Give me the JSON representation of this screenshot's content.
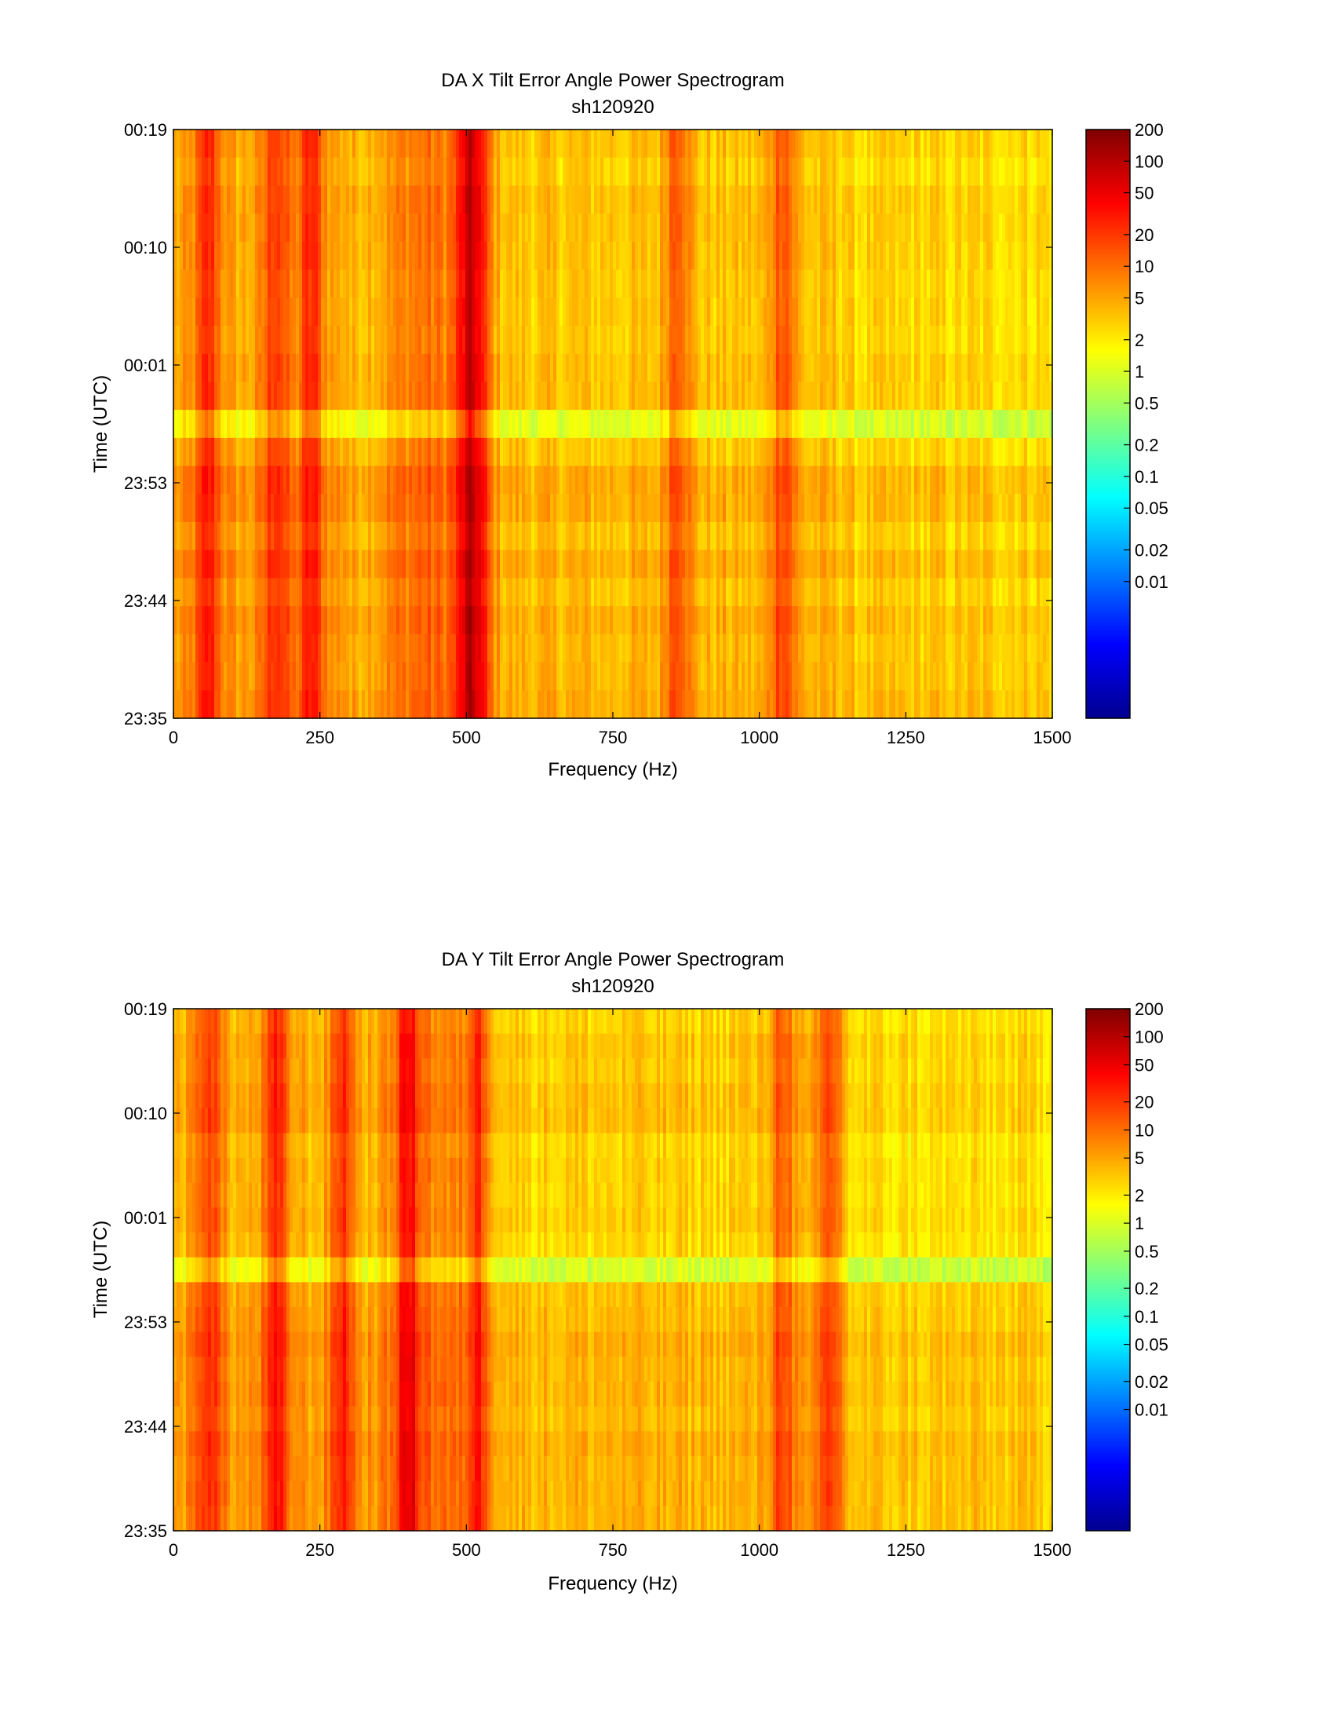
{
  "chart_data": [
    {
      "type": "heatmap",
      "title": "DA X Tilt Error Angle Power Spectrogram",
      "subtitle": "sh120920",
      "xlabel": "Frequency (Hz)",
      "ylabel": "Time (UTC)",
      "xlim": [
        0,
        1500
      ],
      "x_ticks": [
        "0",
        "250",
        "500",
        "750",
        "1000",
        "1250",
        "1500"
      ],
      "y_ticks_bottom_to_top": [
        "23:35",
        "23:44",
        "23:53",
        "00:01",
        "00:10",
        "00:19"
      ],
      "colorbar": {
        "scale": "log",
        "colormap": "jet",
        "range": [
          0.0005,
          200
        ],
        "ticks": [
          "200",
          "100",
          "50",
          "20",
          "10",
          "5",
          "2",
          "1",
          "0.5",
          "0.2",
          "0.1",
          "0.05",
          "0.02",
          "0.01"
        ]
      },
      "features": {
        "peak_bands_hz": [
          60,
          175,
          235,
          500,
          520,
          860,
          1040
        ],
        "quiet_row_near": "23:58",
        "typical_level": 3
      }
    },
    {
      "type": "heatmap",
      "title": "DA Y Tilt Error Angle Power Spectrogram",
      "subtitle": "sh120920",
      "xlabel": "Frequency (Hz)",
      "ylabel": "Time (UTC)",
      "xlim": [
        0,
        1500
      ],
      "x_ticks": [
        "0",
        "250",
        "500",
        "750",
        "1000",
        "1250",
        "1500"
      ],
      "y_ticks_bottom_to_top": [
        "23:35",
        "23:44",
        "23:53",
        "00:01",
        "00:10",
        "00:19"
      ],
      "colorbar": {
        "scale": "log",
        "colormap": "jet",
        "range": [
          0.0005,
          200
        ],
        "ticks": [
          "200",
          "100",
          "50",
          "20",
          "10",
          "5",
          "2",
          "1",
          "0.5",
          "0.2",
          "0.1",
          "0.05",
          "0.02",
          "0.01"
        ]
      },
      "features": {
        "peak_bands_hz": [
          60,
          175,
          290,
          400,
          520,
          1040,
          1120
        ],
        "quiet_row_near": "23:58",
        "typical_level": 3
      }
    }
  ]
}
